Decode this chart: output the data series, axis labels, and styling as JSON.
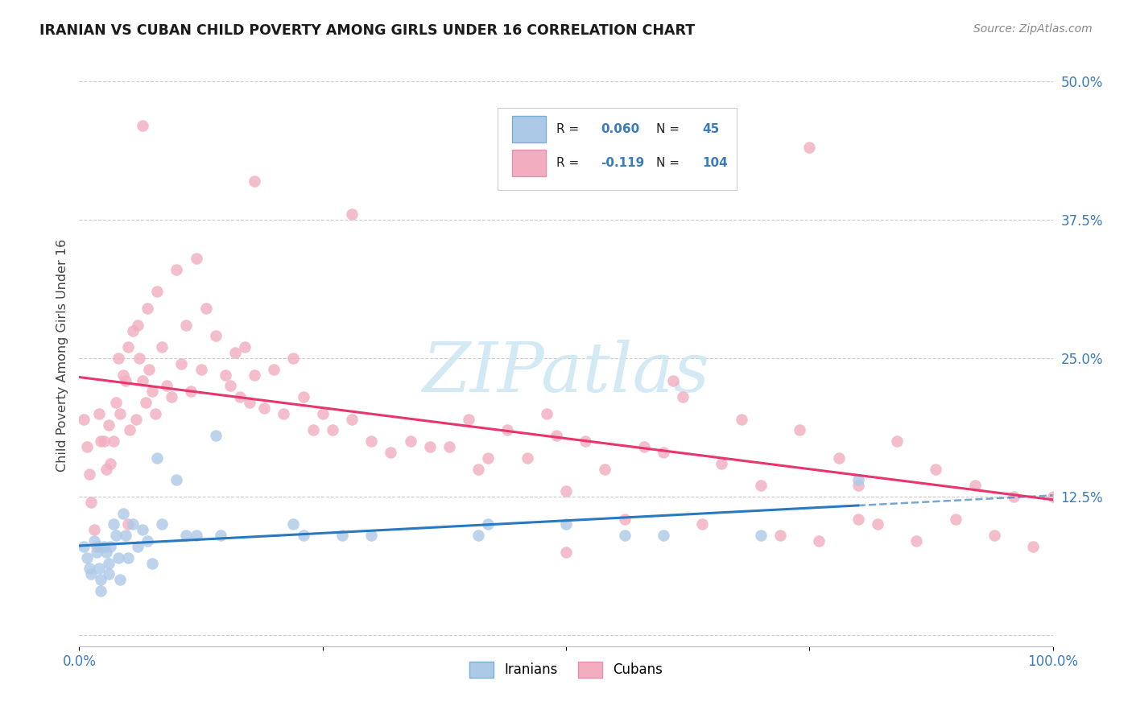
{
  "title": "IRANIAN VS CUBAN CHILD POVERTY AMONG GIRLS UNDER 16 CORRELATION CHART",
  "source": "Source: ZipAtlas.com",
  "ylabel": "Child Poverty Among Girls Under 16",
  "bg_color": "#ffffff",
  "grid_color": "#cccccc",
  "iranian_color": "#adc9e8",
  "cuban_color": "#f2adc0",
  "iranian_line_color": "#2979c0",
  "cuban_line_color": "#e8356b",
  "tick_color": "#3a7abf",
  "r_iranian": 0.06,
  "n_iranian": 45,
  "r_cuban": -0.119,
  "n_cuban": 104,
  "xlim": [
    0.0,
    1.0
  ],
  "ylim": [
    -0.01,
    0.515
  ],
  "iranian_x": [
    0.005,
    0.008,
    0.01,
    0.012,
    0.015,
    0.018,
    0.02,
    0.02,
    0.022,
    0.022,
    0.025,
    0.028,
    0.03,
    0.03,
    0.032,
    0.035,
    0.038,
    0.04,
    0.042,
    0.045,
    0.048,
    0.05,
    0.055,
    0.06,
    0.065,
    0.07,
    0.075,
    0.08,
    0.085,
    0.1,
    0.11,
    0.12,
    0.14,
    0.145,
    0.22,
    0.23,
    0.27,
    0.3,
    0.41,
    0.42,
    0.5,
    0.56,
    0.6,
    0.7,
    0.8
  ],
  "iranian_y": [
    0.08,
    0.07,
    0.06,
    0.055,
    0.085,
    0.075,
    0.08,
    0.06,
    0.05,
    0.04,
    0.08,
    0.075,
    0.065,
    0.055,
    0.08,
    0.1,
    0.09,
    0.07,
    0.05,
    0.11,
    0.09,
    0.07,
    0.1,
    0.08,
    0.095,
    0.085,
    0.065,
    0.16,
    0.1,
    0.14,
    0.09,
    0.09,
    0.18,
    0.09,
    0.1,
    0.09,
    0.09,
    0.09,
    0.09,
    0.1,
    0.1,
    0.09,
    0.09,
    0.09,
    0.14
  ],
  "cuban_x": [
    0.005,
    0.008,
    0.01,
    0.012,
    0.015,
    0.018,
    0.02,
    0.022,
    0.025,
    0.028,
    0.03,
    0.032,
    0.035,
    0.038,
    0.04,
    0.042,
    0.045,
    0.048,
    0.05,
    0.052,
    0.055,
    0.058,
    0.06,
    0.062,
    0.065,
    0.068,
    0.07,
    0.072,
    0.075,
    0.078,
    0.08,
    0.085,
    0.09,
    0.095,
    0.1,
    0.105,
    0.11,
    0.115,
    0.12,
    0.125,
    0.13,
    0.14,
    0.15,
    0.155,
    0.16,
    0.165,
    0.17,
    0.175,
    0.18,
    0.19,
    0.2,
    0.21,
    0.22,
    0.23,
    0.24,
    0.25,
    0.26,
    0.28,
    0.3,
    0.32,
    0.34,
    0.36,
    0.38,
    0.4,
    0.41,
    0.42,
    0.44,
    0.46,
    0.48,
    0.5,
    0.52,
    0.54,
    0.56,
    0.58,
    0.6,
    0.62,
    0.64,
    0.66,
    0.68,
    0.7,
    0.72,
    0.74,
    0.76,
    0.78,
    0.8,
    0.82,
    0.84,
    0.86,
    0.88,
    0.9,
    0.92,
    0.94,
    0.96,
    0.98,
    1.0,
    0.05,
    0.065,
    0.18,
    0.28,
    0.49,
    0.5,
    0.61,
    0.75,
    0.8
  ],
  "cuban_y": [
    0.195,
    0.17,
    0.145,
    0.12,
    0.095,
    0.08,
    0.2,
    0.175,
    0.175,
    0.15,
    0.19,
    0.155,
    0.175,
    0.21,
    0.25,
    0.2,
    0.235,
    0.23,
    0.26,
    0.185,
    0.275,
    0.195,
    0.28,
    0.25,
    0.23,
    0.21,
    0.295,
    0.24,
    0.22,
    0.2,
    0.31,
    0.26,
    0.225,
    0.215,
    0.33,
    0.245,
    0.28,
    0.22,
    0.34,
    0.24,
    0.295,
    0.27,
    0.235,
    0.225,
    0.255,
    0.215,
    0.26,
    0.21,
    0.235,
    0.205,
    0.24,
    0.2,
    0.25,
    0.215,
    0.185,
    0.2,
    0.185,
    0.195,
    0.175,
    0.165,
    0.175,
    0.17,
    0.17,
    0.195,
    0.15,
    0.16,
    0.185,
    0.16,
    0.2,
    0.13,
    0.175,
    0.15,
    0.105,
    0.17,
    0.165,
    0.215,
    0.1,
    0.155,
    0.195,
    0.135,
    0.09,
    0.185,
    0.085,
    0.16,
    0.135,
    0.1,
    0.175,
    0.085,
    0.15,
    0.105,
    0.135,
    0.09,
    0.125,
    0.08,
    0.125,
    0.1,
    0.46,
    0.41,
    0.38,
    0.18,
    0.075,
    0.23,
    0.44,
    0.105
  ]
}
